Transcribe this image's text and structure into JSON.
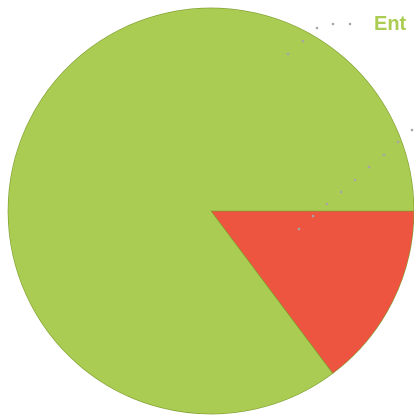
{
  "chart_data": {
    "type": "pie",
    "series": [
      {
        "name": "Ent",
        "value": 85.24,
        "color": "#abcc52"
      },
      {
        "name": "",
        "value": 14.76,
        "color": "#ee5540"
      }
    ],
    "labels_visible": [
      "Ent"
    ],
    "slice_edge_color": "#7a9a2a",
    "leader_line_color": "#a6a6a6"
  }
}
